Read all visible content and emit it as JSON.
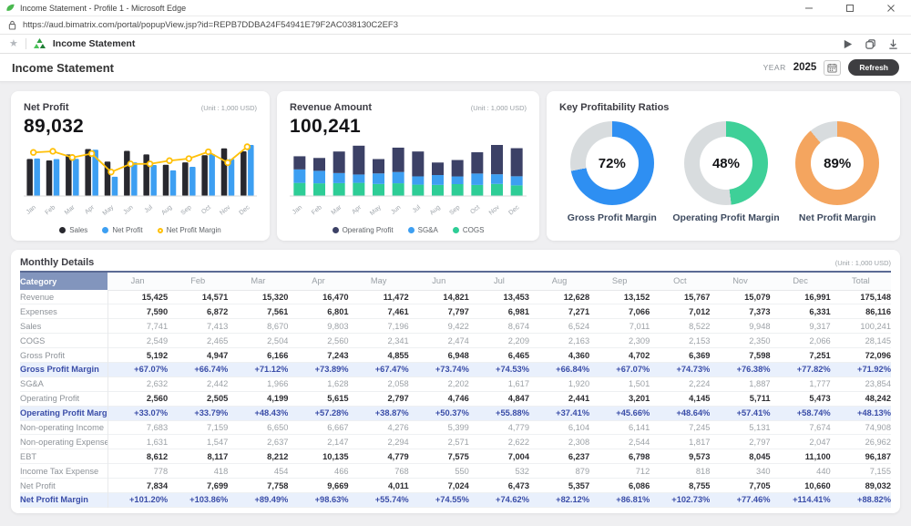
{
  "window": {
    "title": "Income Statement - Profile 1 - Microsoft Edge",
    "url": "https://aud.bimatrix.com/portal/popupView.jsp?id=REPB7DDBA24F54941E79F2AC038130C2EF3"
  },
  "toolbar": {
    "breadcrumb": "Income Statement"
  },
  "header": {
    "title": "Income Statement",
    "year_label": "YEAR",
    "year_value": "2025",
    "refresh_label": "Refresh"
  },
  "unit_label": "(Unit : 1,000 USD)",
  "cards": {
    "net_profit": {
      "title": "Net Profit",
      "value": "89,032"
    },
    "revenue": {
      "title": "Revenue Amount",
      "value": "100,241"
    },
    "ratios": {
      "title": "Key Profitability Ratios"
    }
  },
  "legends": {
    "net_profit": [
      {
        "label": "Sales",
        "color": "#28282e",
        "marker": "dot"
      },
      {
        "label": "Net Profit",
        "color": "#3d9ff2",
        "marker": "dot"
      },
      {
        "label": "Net Profit Margin",
        "color": "#ffc008",
        "marker": "ring"
      }
    ],
    "revenue": [
      {
        "label": "Operating Profit",
        "color": "#3c4166",
        "marker": "dot"
      },
      {
        "label": "SG&A",
        "color": "#3d9ff2",
        "marker": "dot"
      },
      {
        "label": "COGS",
        "color": "#2ecd96",
        "marker": "dot"
      }
    ]
  },
  "chart_data": [
    {
      "id": "net_profit_chart",
      "type": "bar",
      "title": "Net Profit",
      "categories": [
        "Jan",
        "Feb",
        "Mar",
        "Apr",
        "May",
        "Jun",
        "Jul",
        "Aug",
        "Sep",
        "Oct",
        "Nov",
        "Dec"
      ],
      "series": [
        {
          "name": "Sales",
          "color": "#28282e",
          "values": [
            7741,
            7413,
            8670,
            9803,
            7196,
            9422,
            8674,
            6524,
            7011,
            8522,
            9948,
            9317
          ]
        },
        {
          "name": "Net Profit",
          "color": "#3d9ff2",
          "values": [
            7834,
            7699,
            7758,
            9669,
            4011,
            7024,
            6473,
            5357,
            6086,
            8755,
            7705,
            10660
          ]
        }
      ],
      "line": {
        "name": "Net Profit Margin",
        "color": "#ffc008",
        "values": [
          101.2,
          103.86,
          89.49,
          98.63,
          55.74,
          74.55,
          74.62,
          82.12,
          86.81,
          102.73,
          77.46,
          114.41
        ]
      },
      "ylim": [
        0,
        11000
      ],
      "legend_position": "bottom"
    },
    {
      "id": "revenue_chart",
      "type": "bar",
      "stacked": true,
      "title": "Revenue Amount",
      "categories": [
        "Jan",
        "Feb",
        "Mar",
        "Apr",
        "May",
        "Jun",
        "Jul",
        "Aug",
        "Sep",
        "Oct",
        "Nov",
        "Dec"
      ],
      "series": [
        {
          "name": "COGS",
          "color": "#2ecd96",
          "values": [
            2549,
            2465,
            2504,
            2560,
            2341,
            2474,
            2209,
            2163,
            2309,
            2153,
            2350,
            2066
          ]
        },
        {
          "name": "SG&A",
          "color": "#3d9ff2",
          "values": [
            2632,
            2442,
            1966,
            1628,
            2058,
            2202,
            1617,
            1920,
            1501,
            2224,
            1887,
            1777
          ]
        },
        {
          "name": "Operating Profit",
          "color": "#3c4166",
          "values": [
            2560,
            2505,
            4199,
            5615,
            2797,
            4746,
            4847,
            2441,
            3201,
            4145,
            5711,
            5473
          ]
        }
      ],
      "ylim": [
        0,
        10000
      ],
      "legend_position": "bottom"
    },
    {
      "id": "ratio_donuts",
      "type": "pie",
      "title": "Key Profitability Ratios",
      "track_color": "#d8dcde",
      "donuts": [
        {
          "label": "Gross Profit Margin",
          "value_pct": 72,
          "display": "72%",
          "color": "#2e8ff2"
        },
        {
          "label": "Operating Profit Margin",
          "value_pct": 48,
          "display": "48%",
          "color": "#3ed098"
        },
        {
          "label": "Net Profit Margin",
          "value_pct": 89,
          "display": "89%",
          "color": "#f4a55f"
        }
      ]
    }
  ],
  "table": {
    "title": "Monthly Details",
    "columns": [
      "Category",
      "Jan",
      "Feb",
      "Mar",
      "Apr",
      "May",
      "Jun",
      "Jul",
      "Aug",
      "Sep",
      "Oct",
      "Nov",
      "Dec",
      "Total"
    ],
    "rows": [
      {
        "label": "Revenue",
        "style": "bold",
        "values": [
          "15,425",
          "14,571",
          "15,320",
          "16,470",
          "11,472",
          "14,821",
          "13,453",
          "12,628",
          "13,152",
          "15,767",
          "15,079",
          "16,991",
          "175,148"
        ]
      },
      {
        "label": "Expenses",
        "style": "bold",
        "values": [
          "7,590",
          "6,872",
          "7,561",
          "6,801",
          "7,461",
          "7,797",
          "6,981",
          "7,271",
          "7,066",
          "7,012",
          "7,373",
          "6,331",
          "86,116"
        ]
      },
      {
        "label": "Sales",
        "style": "plain",
        "values": [
          "7,741",
          "7,413",
          "8,670",
          "9,803",
          "7,196",
          "9,422",
          "8,674",
          "6,524",
          "7,011",
          "8,522",
          "9,948",
          "9,317",
          "100,241"
        ]
      },
      {
        "label": "COGS",
        "style": "plain",
        "values": [
          "2,549",
          "2,465",
          "2,504",
          "2,560",
          "2,341",
          "2,474",
          "2,209",
          "2,163",
          "2,309",
          "2,153",
          "2,350",
          "2,066",
          "28,145"
        ]
      },
      {
        "label": "Gross Profit",
        "style": "bold",
        "values": [
          "5,192",
          "4,947",
          "6,166",
          "7,243",
          "4,855",
          "6,948",
          "6,465",
          "4,360",
          "4,702",
          "6,369",
          "7,598",
          "7,251",
          "72,096"
        ]
      },
      {
        "label": "Gross Profit Margin",
        "style": "margin",
        "values": [
          "+67.07%",
          "+66.74%",
          "+71.12%",
          "+73.89%",
          "+67.47%",
          "+73.74%",
          "+74.53%",
          "+66.84%",
          "+67.07%",
          "+74.73%",
          "+76.38%",
          "+77.82%",
          "+71.92%"
        ]
      },
      {
        "label": "SG&A",
        "style": "plain",
        "values": [
          "2,632",
          "2,442",
          "1,966",
          "1,628",
          "2,058",
          "2,202",
          "1,617",
          "1,920",
          "1,501",
          "2,224",
          "1,887",
          "1,777",
          "23,854"
        ]
      },
      {
        "label": "Operating Profit",
        "style": "bold",
        "values": [
          "2,560",
          "2,505",
          "4,199",
          "5,615",
          "2,797",
          "4,746",
          "4,847",
          "2,441",
          "3,201",
          "4,145",
          "5,711",
          "5,473",
          "48,242"
        ]
      },
      {
        "label": "Operating Profit Margin",
        "style": "margin",
        "values": [
          "+33.07%",
          "+33.79%",
          "+48.43%",
          "+57.28%",
          "+38.87%",
          "+50.37%",
          "+55.88%",
          "+37.41%",
          "+45.66%",
          "+48.64%",
          "+57.41%",
          "+58.74%",
          "+48.13%"
        ]
      },
      {
        "label": "Non-operating Income",
        "style": "plain",
        "values": [
          "7,683",
          "7,159",
          "6,650",
          "6,667",
          "4,276",
          "5,399",
          "4,779",
          "6,104",
          "6,141",
          "7,245",
          "5,131",
          "7,674",
          "74,908"
        ]
      },
      {
        "label": "Non-operating Expense",
        "style": "plain",
        "values": [
          "1,631",
          "1,547",
          "2,637",
          "2,147",
          "2,294",
          "2,571",
          "2,622",
          "2,308",
          "2,544",
          "1,817",
          "2,797",
          "2,047",
          "26,962"
        ]
      },
      {
        "label": "EBT",
        "style": "bold",
        "values": [
          "8,612",
          "8,117",
          "8,212",
          "10,135",
          "4,779",
          "7,575",
          "7,004",
          "6,237",
          "6,798",
          "9,573",
          "8,045",
          "11,100",
          "96,187"
        ]
      },
      {
        "label": "Income Tax Expense",
        "style": "plain",
        "values": [
          "778",
          "418",
          "454",
          "466",
          "768",
          "550",
          "532",
          "879",
          "712",
          "818",
          "340",
          "440",
          "7,155"
        ]
      },
      {
        "label": "Net Profit",
        "style": "bold",
        "values": [
          "7,834",
          "7,699",
          "7,758",
          "9,669",
          "4,011",
          "7,024",
          "6,473",
          "5,357",
          "6,086",
          "8,755",
          "7,705",
          "10,660",
          "89,032"
        ]
      },
      {
        "label": "Net Profit Margin",
        "style": "margin",
        "values": [
          "+101.20%",
          "+103.86%",
          "+89.49%",
          "+98.63%",
          "+55.74%",
          "+74.55%",
          "+74.62%",
          "+82.12%",
          "+86.81%",
          "+102.73%",
          "+77.46%",
          "+114.41%",
          "+88.82%"
        ]
      }
    ]
  }
}
